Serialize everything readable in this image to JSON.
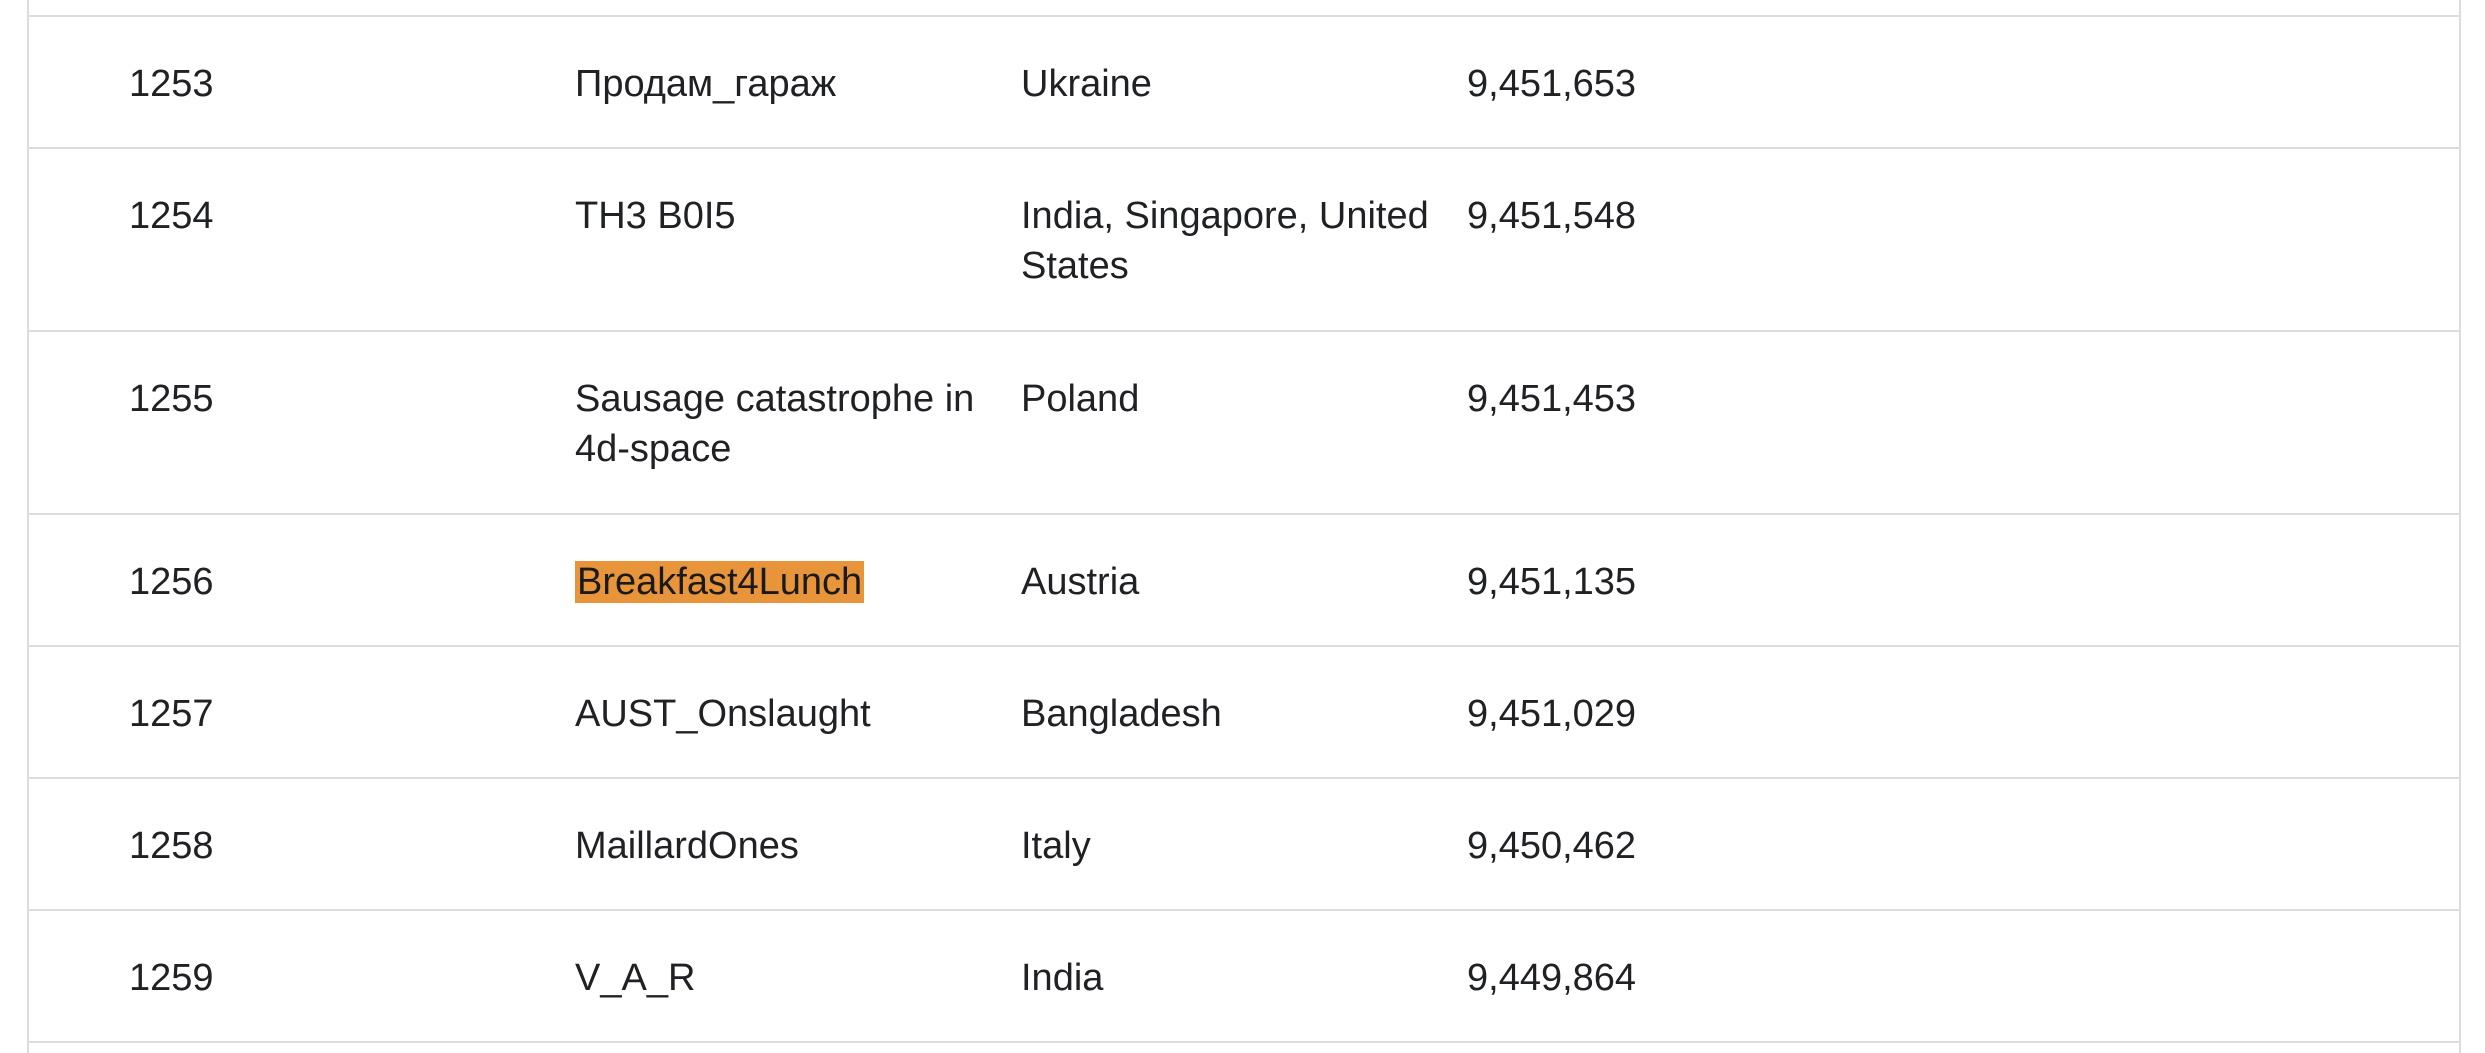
{
  "highlight_color": "#e8943a",
  "rows": [
    {
      "rank": "1253",
      "team": "Продам_гараж",
      "country": "Ukraine",
      "score": "9,451,653"
    },
    {
      "rank": "1254",
      "team": "TH3 B0I5",
      "country": "India, Singapore, United States",
      "score": "9,451,548"
    },
    {
      "rank": "1255",
      "team": "Sausage catastrophe in 4d-space",
      "country": "Poland",
      "score": "9,451,453"
    },
    {
      "rank": "1256",
      "team": "Breakfast4Lunch",
      "country": "Austria",
      "score": "9,451,135",
      "highlighted": true
    },
    {
      "rank": "1257",
      "team": "AUST_Onslaught",
      "country": "Bangladesh",
      "score": "9,451,029"
    },
    {
      "rank": "1258",
      "team": "MaillardOnes",
      "country": "Italy",
      "score": "9,450,462"
    },
    {
      "rank": "1259",
      "team": "V_A_R",
      "country": "India",
      "score": "9,449,864"
    }
  ]
}
